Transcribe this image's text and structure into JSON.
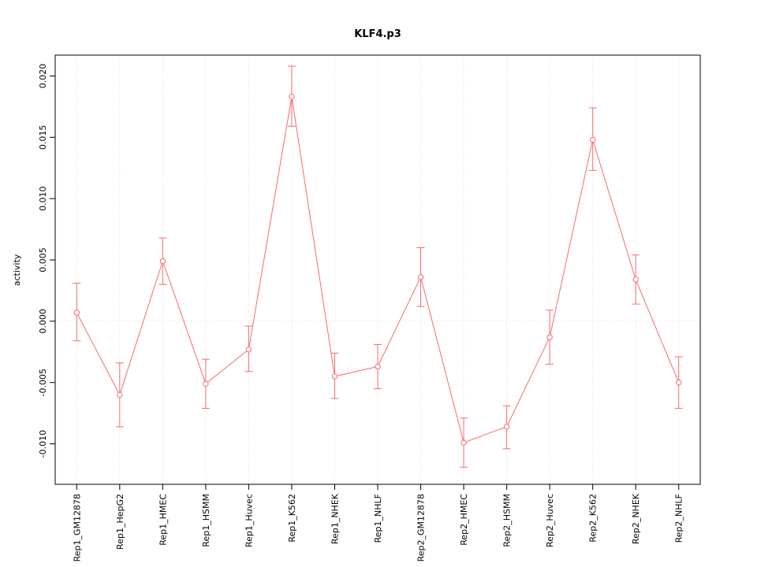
{
  "chart_data": {
    "type": "line",
    "title": "KLF4.p3",
    "xlabel": "",
    "ylabel": "activity",
    "categories": [
      "Rep1_GM12878",
      "Rep1_HepG2",
      "Rep1_HMEC",
      "Rep1_HSMM",
      "Rep1_Huvec",
      "Rep1_K562",
      "Rep1_NHEK",
      "Rep1_NHLF",
      "Rep2_GM12878",
      "Rep2_HMEC",
      "Rep2_HSMM",
      "Rep2_Huvec",
      "Rep2_K562",
      "Rep2_NHEK",
      "Rep2_NHLF"
    ],
    "values": [
      0.0007,
      -0.006,
      0.0049,
      -0.0051,
      -0.0023,
      0.0183,
      -0.0045,
      -0.0037,
      0.0036,
      -0.0099,
      -0.0086,
      -0.0013,
      0.0148,
      0.0034,
      -0.005
    ],
    "error_low": [
      -0.0016,
      -0.0086,
      0.003,
      -0.0071,
      -0.0041,
      0.0159,
      -0.0063,
      -0.0055,
      0.0012,
      -0.0119,
      -0.0104,
      -0.0035,
      0.0123,
      0.0014,
      -0.0071
    ],
    "error_high": [
      0.0031,
      -0.0034,
      0.0068,
      -0.0031,
      -0.0004,
      0.0208,
      -0.0026,
      -0.0019,
      0.006,
      -0.0079,
      -0.0069,
      0.0009,
      0.0174,
      0.0054,
      -0.0029
    ],
    "y_ticks": [
      -0.01,
      -0.005,
      0.0,
      0.005,
      0.01,
      0.015,
      0.02
    ],
    "y_tick_labels": [
      "-0.010",
      "-0.005",
      "0.000",
      "0.005",
      "0.010",
      "0.015",
      "0.020"
    ],
    "ylim": [
      -0.0133,
      0.0217
    ],
    "reference_line_y": 0,
    "grid": "dotted vertical line at each category; dotted horizontal line at y=0",
    "legend_position": "none",
    "series_color": "#fb6a6a",
    "grid_color": "#d9d9d9",
    "axis_color": "#000000"
  }
}
